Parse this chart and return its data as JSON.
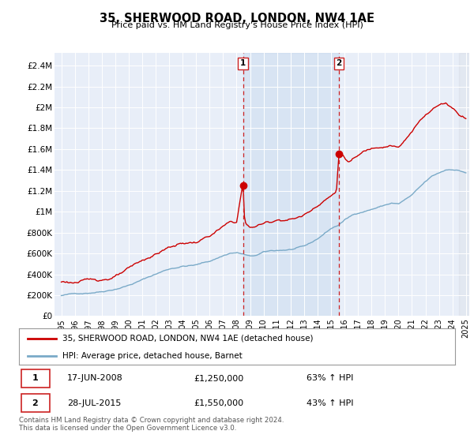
{
  "title": "35, SHERWOOD ROAD, LONDON, NW4 1AE",
  "subtitle": "Price paid vs. HM Land Registry's House Price Index (HPI)",
  "ylim": [
    0,
    2500000
  ],
  "yticks": [
    0,
    200000,
    400000,
    600000,
    800000,
    1000000,
    1200000,
    1400000,
    1600000,
    1800000,
    2000000,
    2200000,
    2400000
  ],
  "ytick_labels": [
    "£0",
    "£200K",
    "£400K",
    "£600K",
    "£800K",
    "£1M",
    "£1.2M",
    "£1.4M",
    "£1.6M",
    "£1.8M",
    "£2M",
    "£2.2M",
    "£2.4M"
  ],
  "background_color": "#e8eef8",
  "red_line_color": "#cc0000",
  "blue_line_color": "#7aaac8",
  "vline_color": "#cc2222",
  "sale1_x": 2008.47,
  "sale2_x": 2015.58,
  "sale1_price": 1250000,
  "sale2_price": 1550000,
  "legend1": "35, SHERWOOD ROAD, LONDON, NW4 1AE (detached house)",
  "legend2": "HPI: Average price, detached house, Barnet",
  "footer": "Contains HM Land Registry data © Crown copyright and database right 2024.\nThis data is licensed under the Open Government Licence v3.0.",
  "xmin": 1995.0,
  "xmax": 2025.25,
  "hatch_start": 2024.5
}
